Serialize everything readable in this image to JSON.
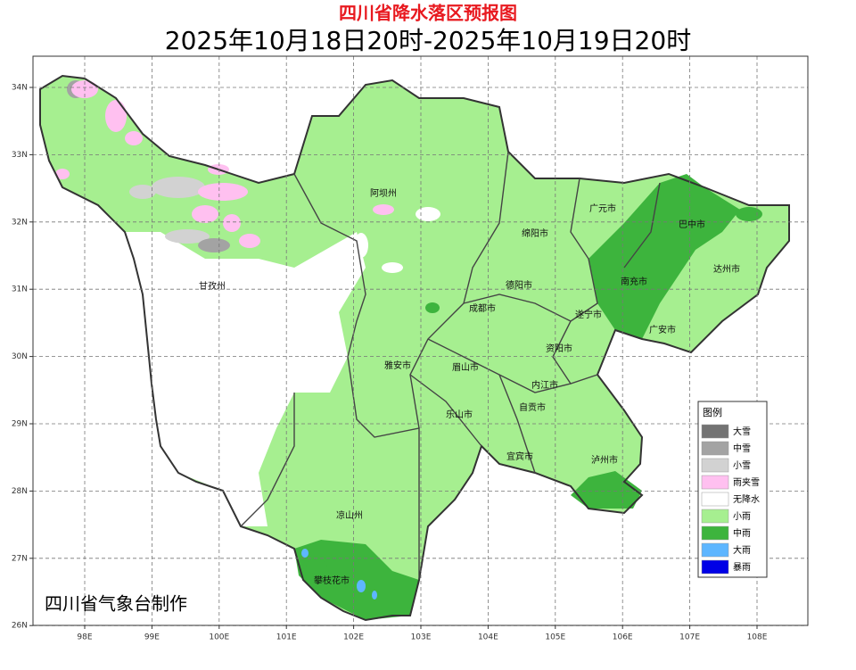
{
  "header": {
    "title": "四川省降水落区预报图",
    "period": "2025年10月18日20时-2025年10月19日20时"
  },
  "axes": {
    "lon_ticks": [
      {
        "value": 98,
        "label": "98E"
      },
      {
        "value": 99,
        "label": "99E"
      },
      {
        "value": 100,
        "label": "100E"
      },
      {
        "value": 101,
        "label": "101E"
      },
      {
        "value": 102,
        "label": "102E"
      },
      {
        "value": 103,
        "label": "103E"
      },
      {
        "value": 104,
        "label": "104E"
      },
      {
        "value": 105,
        "label": "105E"
      },
      {
        "value": 106,
        "label": "106E"
      },
      {
        "value": 107,
        "label": "107E"
      },
      {
        "value": 108,
        "label": "108E"
      }
    ],
    "lat_ticks": [
      {
        "value": 34,
        "label": "34N"
      },
      {
        "value": 33,
        "label": "33N"
      },
      {
        "value": 32,
        "label": "32N"
      },
      {
        "value": 31,
        "label": "31N"
      },
      {
        "value": 30,
        "label": "30N"
      },
      {
        "value": 29,
        "label": "29N"
      },
      {
        "value": 28,
        "label": "28N"
      },
      {
        "value": 27,
        "label": "27N"
      },
      {
        "value": 26,
        "label": "26N"
      }
    ]
  },
  "regions": [
    "阿坝州",
    "甘孜州",
    "广元市",
    "巴中市",
    "绵阳市",
    "达州市",
    "南充市",
    "德阳市",
    "成都市",
    "遂宁市",
    "广安市",
    "资阳市",
    "雅安市",
    "眉山市",
    "内江市",
    "乐山市",
    "自贡市",
    "宜宾市",
    "泸州市",
    "凉山州",
    "攀枝花市"
  ],
  "legend": {
    "title": "图例",
    "items": [
      {
        "label": "大雪",
        "color": "#737373"
      },
      {
        "label": "中雪",
        "color": "#a3a3a3"
      },
      {
        "label": "小雪",
        "color": "#d2d2d2"
      },
      {
        "label": "雨夹雪",
        "color": "#ffc0f0"
      },
      {
        "label": "无降水",
        "color": "#ffffff"
      },
      {
        "label": "小雨",
        "color": "#a6ef90"
      },
      {
        "label": "中雨",
        "color": "#3db43d"
      },
      {
        "label": "大雨",
        "color": "#5eb6ff"
      },
      {
        "label": "暴雨",
        "color": "#0000e6"
      }
    ]
  },
  "credit": "四川省气象台制作"
}
